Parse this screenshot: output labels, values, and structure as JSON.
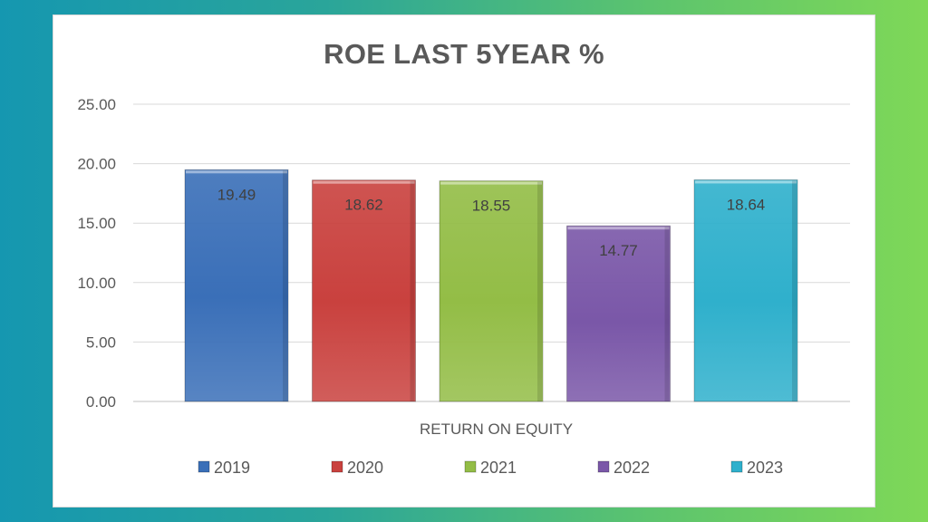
{
  "chart_data": {
    "type": "bar",
    "title": "ROE LAST 5YEAR %",
    "xlabel": "RETURN ON EQUITY",
    "ylabel": "",
    "categories": [
      "RETURN ON EQUITY"
    ],
    "series": [
      {
        "name": "2019",
        "values": [
          19.49
        ],
        "color": "#3a6fb8"
      },
      {
        "name": "2020",
        "values": [
          18.62
        ],
        "color": "#c9413e"
      },
      {
        "name": "2021",
        "values": [
          18.55
        ],
        "color": "#93bd46"
      },
      {
        "name": "2022",
        "values": [
          14.77
        ],
        "color": "#7a57a8"
      },
      {
        "name": "2023",
        "values": [
          18.64
        ],
        "color": "#2fb0cc"
      }
    ],
    "ylim": [
      0,
      25
    ],
    "yticks": [
      "0.00",
      "5.00",
      "10.00",
      "15.00",
      "20.00",
      "25.00"
    ],
    "data_labels": [
      "19.49",
      "18.62",
      "18.55",
      "14.77",
      "18.64"
    ],
    "grid": true,
    "legend": "bottom"
  }
}
